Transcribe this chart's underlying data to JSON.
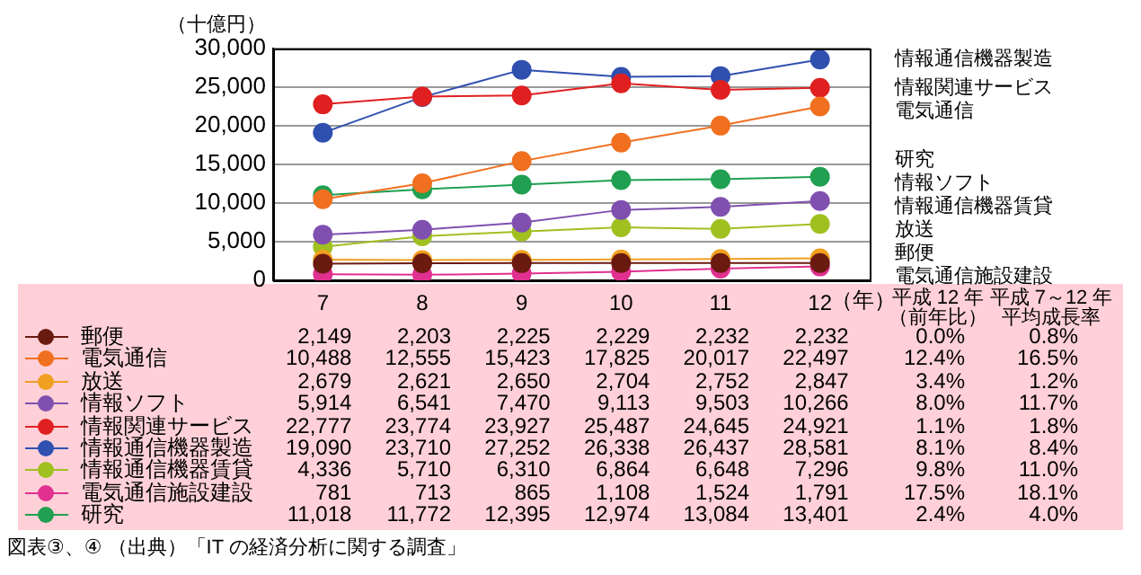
{
  "chart_data": {
    "type": "line",
    "ylabel": "（十億円）",
    "xlabel": "（年）",
    "categories": [
      "7",
      "8",
      "9",
      "10",
      "11",
      "12"
    ],
    "ylim": [
      0,
      30000
    ],
    "yticks": [
      {
        "value": 0,
        "label": "0"
      },
      {
        "value": 5000,
        "label": "5,000"
      },
      {
        "value": 10000,
        "label": "10,000"
      },
      {
        "value": 15000,
        "label": "15,000"
      },
      {
        "value": 20000,
        "label": "20,000"
      },
      {
        "value": 25000,
        "label": "25,000"
      },
      {
        "value": 30000,
        "label": "30,000"
      }
    ],
    "grid": "y",
    "legend": "bottom left",
    "marker": "circle",
    "line_style": "solid",
    "series": [
      {
        "name": "郵便",
        "color": "#6b1a10",
        "values": [
          2149,
          2203,
          2225,
          2229,
          2232,
          2232
        ],
        "value_labels": [
          "2,149",
          "2,203",
          "2,225",
          "2,229",
          "2,232",
          "2,232"
        ]
      },
      {
        "name": "電気通信",
        "color": "#f07020",
        "values": [
          10488,
          12555,
          15423,
          17825,
          20017,
          22497
        ],
        "value_labels": [
          "10,488",
          "12,555",
          "15,423",
          "17,825",
          "20,017",
          "22,497"
        ]
      },
      {
        "name": "放送",
        "color": "#f0a020",
        "values": [
          2679,
          2621,
          2650,
          2704,
          2752,
          2847
        ],
        "value_labels": [
          "2,679",
          "2,621",
          "2,650",
          "2,704",
          "2,752",
          "2,847"
        ]
      },
      {
        "name": "情報ソフト",
        "color": "#8050b0",
        "values": [
          5914,
          6541,
          7470,
          9113,
          9503,
          10266
        ],
        "value_labels": [
          "5,914",
          "6,541",
          "7,470",
          "9,113",
          "9,503",
          "10,266"
        ]
      },
      {
        "name": "情報関連サービス",
        "color": "#e02020",
        "values": [
          22777,
          23774,
          23927,
          25487,
          24645,
          24921
        ],
        "value_labels": [
          "22,777",
          "23,774",
          "23,927",
          "25,487",
          "24,645",
          "24,921"
        ]
      },
      {
        "name": "情報通信機器製造",
        "color": "#3050b0",
        "values": [
          19090,
          23710,
          27252,
          26338,
          26437,
          28581
        ],
        "value_labels": [
          "19,090",
          "23,710",
          "27,252",
          "26,338",
          "26,437",
          "28,581"
        ]
      },
      {
        "name": "情報通信機器賃貸",
        "color": "#a0c020",
        "values": [
          4336,
          5710,
          6310,
          6864,
          6648,
          7296
        ],
        "value_labels": [
          "4,336",
          "5,710",
          "6,310",
          "6,864",
          "6,648",
          "7,296"
        ]
      },
      {
        "name": "電気通信施設建設",
        "color": "#e03090",
        "values": [
          781,
          713,
          865,
          1108,
          1524,
          1791
        ],
        "value_labels": [
          "781",
          "713",
          "865",
          "1,108",
          "1,524",
          "1,791"
        ]
      },
      {
        "name": "研究",
        "color": "#20a050",
        "values": [
          11018,
          11772,
          12395,
          12974,
          13084,
          13401
        ],
        "value_labels": [
          "11,018",
          "11,772",
          "12,395",
          "12,974",
          "13,084",
          "13,401"
        ]
      }
    ],
    "annotations": [
      "平成 12 年",
      "（前年比）",
      "平成 7～12 年",
      "平均成長率",
      "0.0%",
      "0.8%",
      "12.4%",
      "16.5%",
      "3.4%",
      "1.2%",
      "8.0%",
      "11.7%",
      "1.1%",
      "1.8%",
      "8.1%",
      "8.4%",
      "9.8%",
      "11.0%",
      "17.5%",
      "18.1%",
      "2.4%",
      "4.0%",
      "図表③、④ （出典）「IT の経済分析に関する調査」"
    ]
  }
}
